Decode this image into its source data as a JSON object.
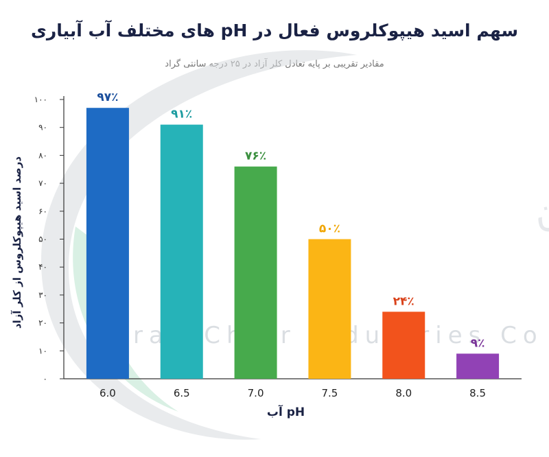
{
  "chart_data": {
    "type": "bar",
    "title": "سهم اسید هیپوکلروس فعال در pH های مختلف آب آبیاری",
    "subtitle": "مقادیر تقریبی بر پایه تعادل کلر آزاد در ۲۵ درجه سانتی گراد",
    "xlabel": "pH آب",
    "ylabel": "درصد اسید هیپوکلروس از کلر آزاد",
    "categories": [
      "6.0",
      "6.5",
      "7.0",
      "7.5",
      "8.0",
      "8.5"
    ],
    "values": [
      97,
      91,
      76,
      50,
      24,
      9
    ],
    "data_labels": [
      "۹۷٪",
      "۹۱٪",
      "۷۶٪",
      "۵۰٪",
      "۲۴٪",
      "۹٪"
    ],
    "colors": [
      "#1e6bc4",
      "#26b3b8",
      "#47aa4c",
      "#fbb515",
      "#f2531c",
      "#9142b5"
    ],
    "label_colors": [
      "#1a4e9c",
      "#1d9ca0",
      "#3a8f3e",
      "#f0a500",
      "#d9421a",
      "#7a3399"
    ],
    "ylim": [
      0,
      100
    ],
    "yticks": [
      0,
      10,
      20,
      30,
      40,
      50,
      60,
      70,
      80,
      90,
      100
    ],
    "ytick_labels": [
      "۰",
      "۱۰",
      "۲۰",
      "۳۰",
      "۴۰",
      "۵۰",
      "۶۰",
      "۷۰",
      "۸۰",
      "۹۰",
      "۱۰۰"
    ],
    "grid": false,
    "watermark_text": "Iran Chlor Industries Co",
    "watermark_persian": "شرکت صنایع کلر ایران"
  }
}
